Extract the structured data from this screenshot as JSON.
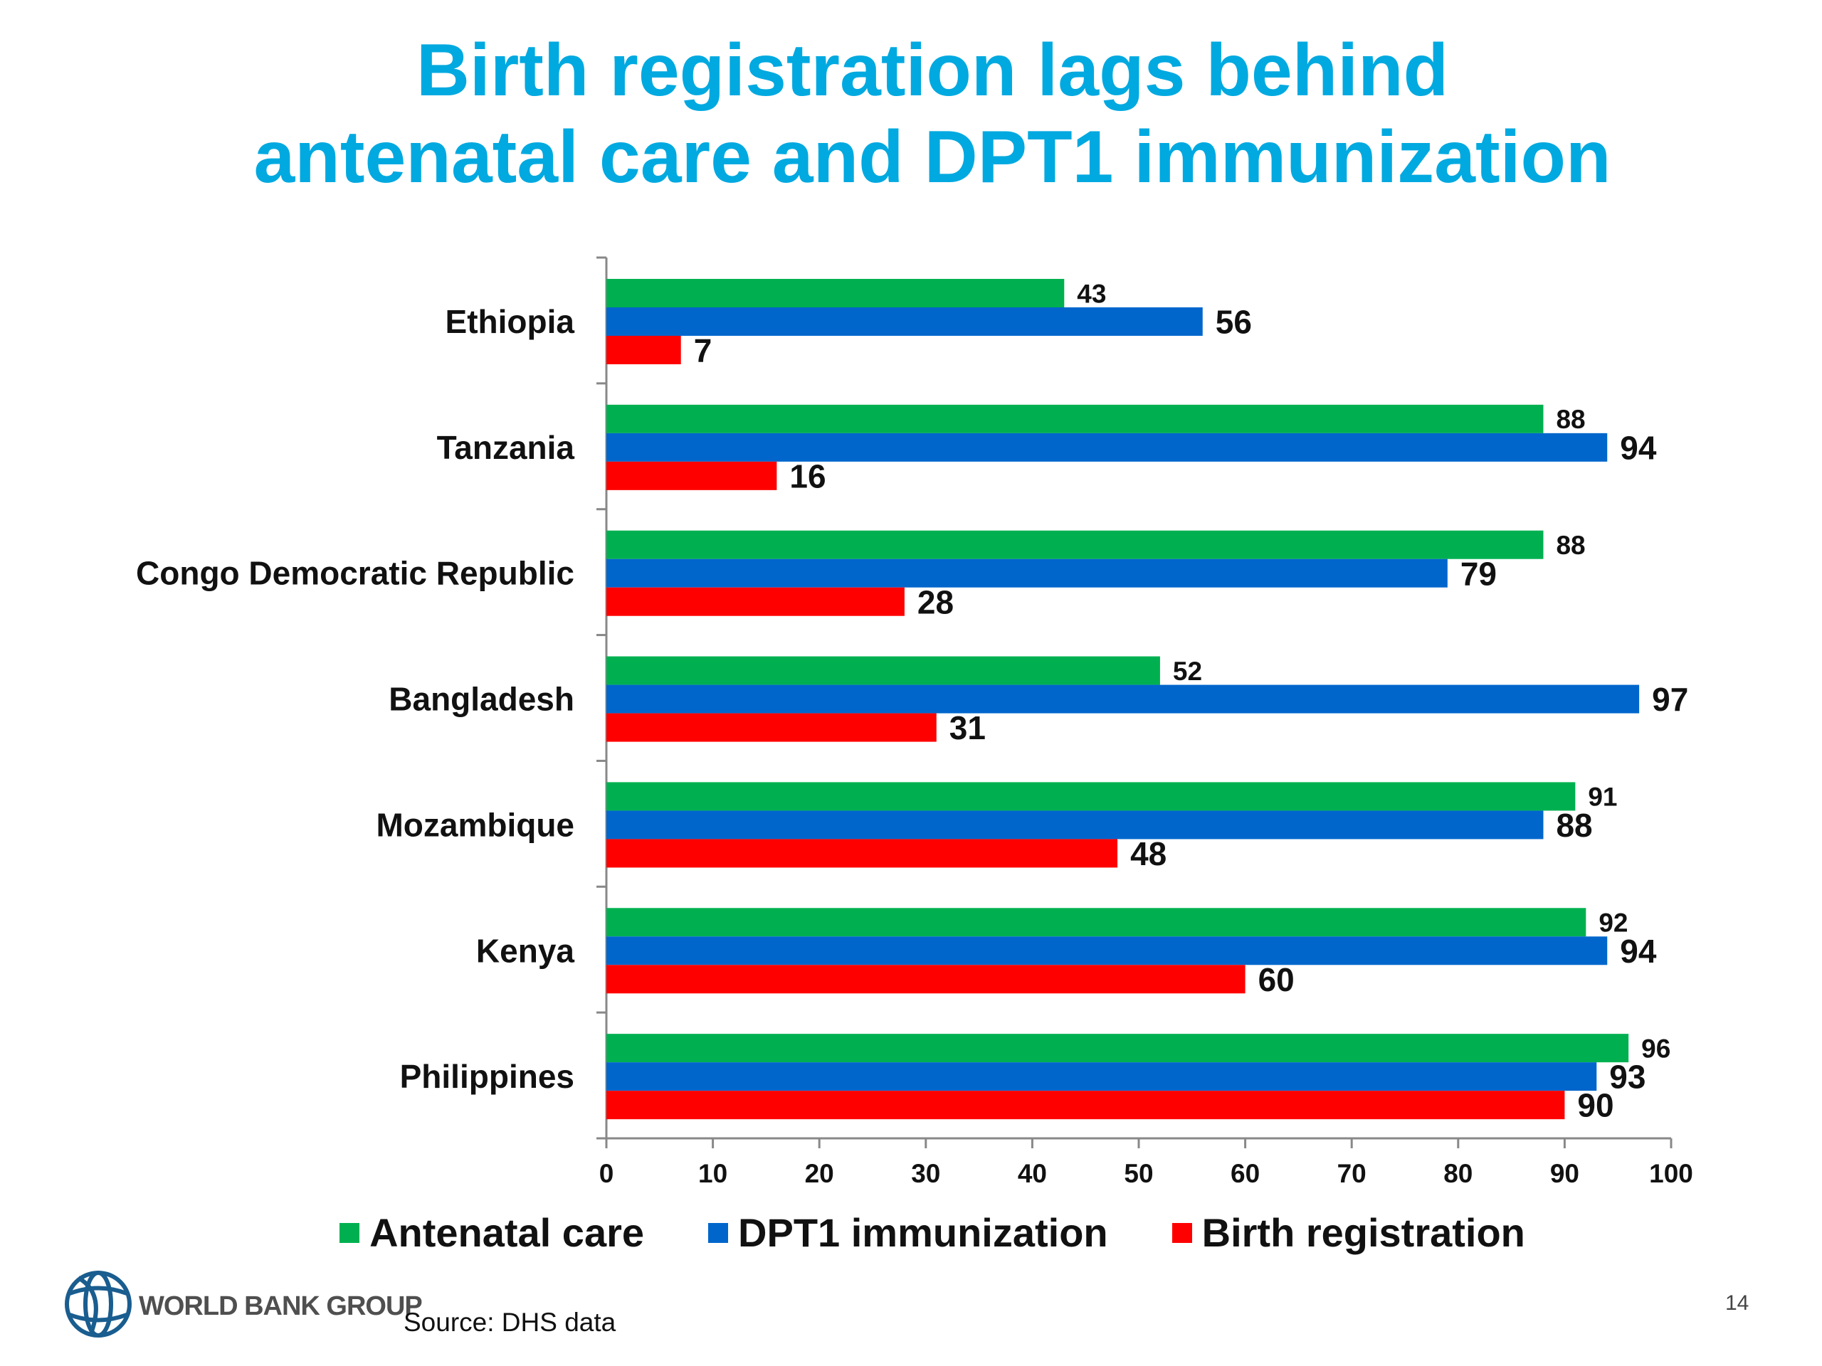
{
  "title_line1": "Birth registration lags behind",
  "title_line2": "antenatal care and DPT1 immunization",
  "source": "Source: DHS data",
  "page_number": "14",
  "logo_text": "WORLD BANK GROUP",
  "chart_data": {
    "type": "bar",
    "orientation": "horizontal",
    "categories": [
      "Ethiopia",
      "Tanzania",
      "Congo Democratic Republic",
      "Bangladesh",
      "Mozambique",
      "Kenya",
      "Philippines"
    ],
    "series": [
      {
        "name": "Antenatal care",
        "color": "#00b050",
        "values": [
          43,
          88,
          88,
          52,
          91,
          92,
          96
        ]
      },
      {
        "name": "DPT1 immunization",
        "color": "#0066cc",
        "values": [
          56,
          94,
          79,
          97,
          88,
          94,
          93
        ]
      },
      {
        "name": "Birth registration",
        "color": "#ff0000",
        "values": [
          7,
          16,
          28,
          31,
          48,
          60,
          90
        ]
      }
    ],
    "xlim": [
      0,
      100
    ],
    "xticks": [
      0,
      10,
      20,
      30,
      40,
      50,
      60,
      70,
      80,
      90,
      100
    ],
    "legend_position": "bottom",
    "grid": false
  }
}
